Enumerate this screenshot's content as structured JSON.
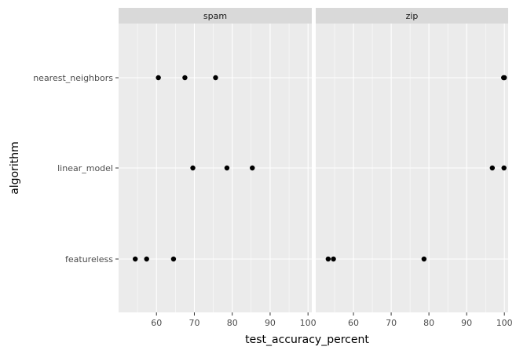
{
  "chart_data": {
    "type": "scatter",
    "xlabel": "test_accuracy_percent",
    "ylabel": "algorithm",
    "xlim": [
      50,
      101
    ],
    "x_ticks": [
      60,
      70,
      80,
      90,
      100
    ],
    "y_categories": [
      "featureless",
      "linear_model",
      "nearest_neighbors"
    ],
    "grid": true,
    "facets": [
      {
        "name": "spam",
        "points": [
          {
            "algorithm": "nearest_neighbors",
            "x": 60.5
          },
          {
            "algorithm": "nearest_neighbors",
            "x": 67.5
          },
          {
            "algorithm": "nearest_neighbors",
            "x": 75.6
          },
          {
            "algorithm": "linear_model",
            "x": 69.6
          },
          {
            "algorithm": "linear_model",
            "x": 78.6
          },
          {
            "algorithm": "linear_model",
            "x": 85.3
          },
          {
            "algorithm": "featureless",
            "x": 54.4
          },
          {
            "algorithm": "featureless",
            "x": 57.4
          },
          {
            "algorithm": "featureless",
            "x": 64.5
          }
        ]
      },
      {
        "name": "zip",
        "points": [
          {
            "algorithm": "nearest_neighbors",
            "x": 99.8
          },
          {
            "algorithm": "nearest_neighbors",
            "x": 100.0
          },
          {
            "algorithm": "linear_model",
            "x": 96.8
          },
          {
            "algorithm": "linear_model",
            "x": 99.9
          },
          {
            "algorithm": "featureless",
            "x": 53.3
          },
          {
            "algorithm": "featureless",
            "x": 54.7
          },
          {
            "algorithm": "featureless",
            "x": 78.7
          }
        ]
      }
    ],
    "colors": {
      "panel_background": "#ebebeb",
      "strip_background": "#d9d9d9",
      "grid_major": "#ffffff",
      "point": "#000000",
      "tick": "#333333"
    }
  }
}
